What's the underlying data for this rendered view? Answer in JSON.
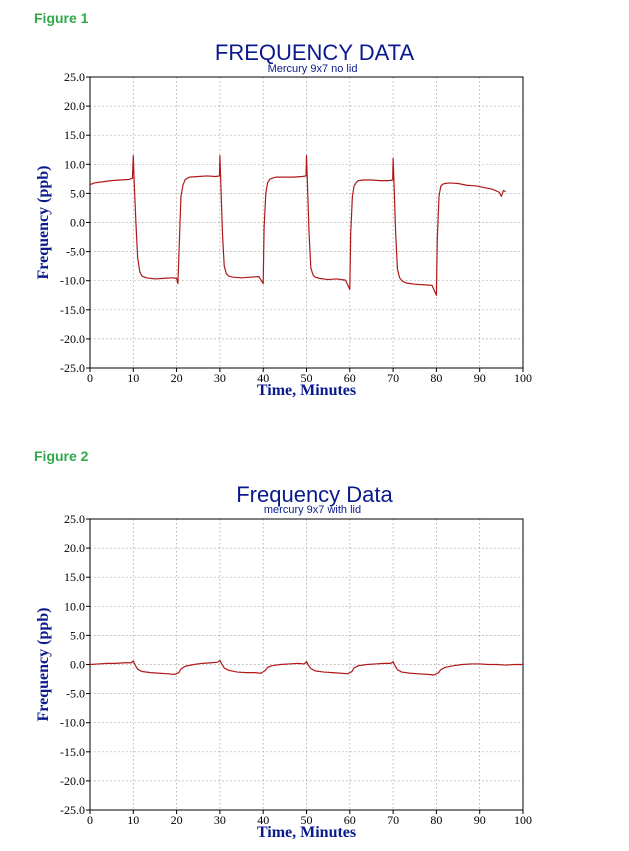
{
  "figures": [
    {
      "label": "Figure 1"
    },
    {
      "label": "Figure 2"
    }
  ],
  "chart_data": [
    {
      "type": "line",
      "title": "FREQUENCY DATA",
      "subtitle": "Mercury 9x7 no lid",
      "xlabel": "Time, Minutes",
      "ylabel": "Frequency (ppb)",
      "xlim": [
        0,
        100
      ],
      "ylim": [
        -25,
        25
      ],
      "xticks": [
        0,
        10,
        20,
        30,
        40,
        50,
        60,
        70,
        80,
        90,
        100
      ],
      "yticks": [
        25.0,
        20.0,
        15.0,
        10.0,
        5.0,
        0.0,
        -5.0,
        -10.0,
        -15.0,
        -20.0,
        -25.0
      ],
      "ytick_labels": [
        "25.0",
        "20.0",
        "15.0",
        "10.0",
        "5.0",
        "0.0",
        "-5.0",
        "-10.0",
        "-15.0",
        "-20.0",
        "-25.0"
      ],
      "grid": true,
      "series_color": "#b01818",
      "series": [
        {
          "x": [
            0,
            1,
            3,
            5,
            7,
            9,
            9.8,
            10,
            10.2,
            10.6,
            11,
            11.5,
            12,
            13,
            15,
            17,
            19,
            20,
            20.3,
            20.7,
            21,
            21.5,
            22,
            23,
            25,
            27,
            29,
            29.9,
            30,
            30.2,
            30.6,
            31,
            31.5,
            32,
            33,
            35,
            37,
            39,
            40,
            40.2,
            40.6,
            41,
            41.5,
            42,
            43,
            45,
            47,
            49,
            49.9,
            50,
            50.2,
            50.6,
            51,
            51.5,
            52,
            53,
            55,
            57,
            59,
            60,
            60.2,
            60.6,
            61,
            61.5,
            62,
            63,
            65,
            67,
            69,
            69.9,
            70,
            70.2,
            70.6,
            71,
            71.5,
            72,
            73,
            75,
            77,
            79,
            80,
            80.2,
            80.6,
            81,
            81.5,
            82,
            83,
            85,
            87,
            89,
            91,
            93,
            94.5,
            95,
            95.5,
            96
          ],
          "y": [
            6.5,
            6.8,
            7.0,
            7.2,
            7.3,
            7.4,
            7.6,
            11.5,
            7.0,
            0.0,
            -6.0,
            -8.5,
            -9.2,
            -9.5,
            -9.7,
            -9.6,
            -9.5,
            -9.6,
            -10.5,
            -2.0,
            4.5,
            6.5,
            7.4,
            7.8,
            7.9,
            8.0,
            7.9,
            8.0,
            11.5,
            7.0,
            -2.0,
            -7.5,
            -8.8,
            -9.2,
            -9.4,
            -9.5,
            -9.4,
            -9.3,
            -10.5,
            -1.0,
            5.0,
            6.8,
            7.4,
            7.6,
            7.8,
            7.8,
            7.8,
            7.9,
            8.0,
            11.5,
            7.0,
            -2.0,
            -7.8,
            -9.0,
            -9.4,
            -9.6,
            -9.8,
            -9.7,
            -9.9,
            -11.5,
            -2.0,
            4.5,
            6.3,
            6.9,
            7.2,
            7.3,
            7.3,
            7.2,
            7.2,
            7.3,
            11.0,
            7.0,
            -2.0,
            -8.0,
            -9.5,
            -10.0,
            -10.4,
            -10.6,
            -10.7,
            -10.8,
            -12.5,
            -3.0,
            4.5,
            6.2,
            6.6,
            6.7,
            6.8,
            6.7,
            6.4,
            6.3,
            6.0,
            5.7,
            5.2,
            4.5,
            5.5,
            5.3
          ]
        }
      ]
    },
    {
      "type": "line",
      "title": "Frequency Data",
      "subtitle": "mercury 9x7 with lid",
      "xlabel": "Time, Minutes",
      "ylabel": "Frequency (ppb)",
      "xlim": [
        0,
        100
      ],
      "ylim": [
        -25,
        25
      ],
      "xticks": [
        0,
        10,
        20,
        30,
        40,
        50,
        60,
        70,
        80,
        90,
        100
      ],
      "yticks": [
        25.0,
        20.0,
        15.0,
        10.0,
        5.0,
        0.0,
        -5.0,
        -10.0,
        -15.0,
        -20.0,
        -25.0
      ],
      "ytick_labels": [
        "25.0",
        "20.0",
        "15.0",
        "10.0",
        "5.0",
        "0.0",
        "-5.0",
        "-10.0",
        "-15.0",
        "-20.0",
        "-25.0"
      ],
      "grid": true,
      "series_color": "#b01818",
      "series": [
        {
          "x": [
            0,
            2,
            4,
            6,
            8,
            9.5,
            10,
            10.5,
            11,
            12,
            14,
            16,
            18,
            19.5,
            20.5,
            21,
            22,
            24,
            26,
            28,
            29.5,
            30,
            30.5,
            31,
            32,
            34,
            36,
            38,
            39.5,
            40.5,
            41,
            42,
            44,
            46,
            48,
            49.5,
            50,
            50.5,
            51,
            52,
            54,
            56,
            58,
            59.5,
            60.5,
            61,
            62,
            64,
            66,
            68,
            69.5,
            70,
            70.5,
            71,
            72,
            74,
            76,
            78,
            79.5,
            80.5,
            81,
            82,
            84,
            86,
            88,
            90,
            92,
            94,
            96,
            98,
            100
          ],
          "y": [
            0.0,
            0.1,
            0.2,
            0.2,
            0.3,
            0.3,
            0.6,
            -0.2,
            -0.8,
            -1.2,
            -1.4,
            -1.5,
            -1.6,
            -1.7,
            -1.4,
            -0.8,
            -0.3,
            0.0,
            0.2,
            0.3,
            0.4,
            0.7,
            0.0,
            -0.6,
            -1.0,
            -1.3,
            -1.4,
            -1.4,
            -1.5,
            -1.0,
            -0.5,
            -0.2,
            0.0,
            0.1,
            0.2,
            0.1,
            0.5,
            -0.2,
            -0.7,
            -1.1,
            -1.3,
            -1.4,
            -1.5,
            -1.6,
            -1.2,
            -0.6,
            -0.2,
            0.0,
            0.1,
            0.2,
            0.2,
            0.5,
            -0.3,
            -0.9,
            -1.3,
            -1.5,
            -1.6,
            -1.7,
            -1.8,
            -1.4,
            -0.9,
            -0.5,
            -0.2,
            0.0,
            0.1,
            0.1,
            0.0,
            0.0,
            -0.1,
            0.0,
            0.0
          ]
        }
      ]
    }
  ]
}
